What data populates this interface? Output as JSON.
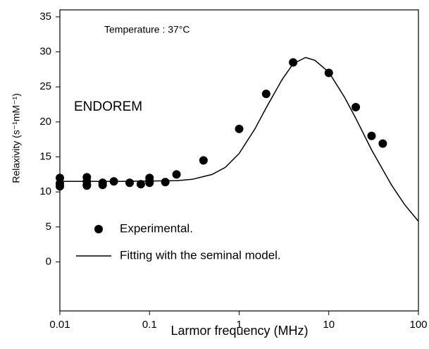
{
  "chart_data": {
    "type": "scatter",
    "xlabel": "Larmor frequency (MHz)",
    "ylabel": "Relaxivity (s⁻¹mM⁻¹)",
    "annotations": [
      "Temperature : 37°C",
      "ENDOREM"
    ],
    "xscale": "log",
    "xlim": [
      0.01,
      100
    ],
    "xticks": [
      0.01,
      0.1,
      1,
      10,
      100
    ],
    "ylim": [
      -7,
      36
    ],
    "yticks": [
      0,
      5,
      10,
      15,
      20,
      25,
      30,
      35
    ],
    "legend": "lower left",
    "series": [
      {
        "name": "Experimental.",
        "kind": "points",
        "color": "#000000",
        "x": [
          0.01,
          0.01,
          0.01,
          0.02,
          0.02,
          0.02,
          0.02,
          0.03,
          0.03,
          0.04,
          0.06,
          0.08,
          0.1,
          0.1,
          0.1,
          0.15,
          0.2,
          0.4,
          1,
          2,
          4,
          10,
          20,
          30,
          40
        ],
        "values": [
          12,
          11.2,
          10.8,
          12.1,
          11.5,
          11,
          10.9,
          11.3,
          11,
          11.5,
          11.3,
          11.1,
          12,
          11.5,
          11.3,
          11.4,
          12.5,
          14.5,
          19,
          24,
          28.5,
          27,
          22.1,
          18,
          16.9
        ]
      },
      {
        "name": "Fitting with the seminal model.",
        "kind": "line",
        "color": "#000000",
        "x": [
          0.01,
          0.05,
          0.2,
          0.3,
          0.5,
          0.7,
          1,
          1.5,
          2,
          3,
          4,
          5.5,
          7,
          10,
          15,
          20,
          30,
          50,
          70,
          100
        ],
        "values": [
          11.5,
          11.5,
          11.6,
          11.8,
          12.5,
          13.5,
          15.5,
          19,
          22,
          26,
          28.3,
          29.2,
          28.8,
          27.1,
          23.5,
          20.5,
          16,
          11,
          8.2,
          5.8
        ]
      }
    ]
  }
}
